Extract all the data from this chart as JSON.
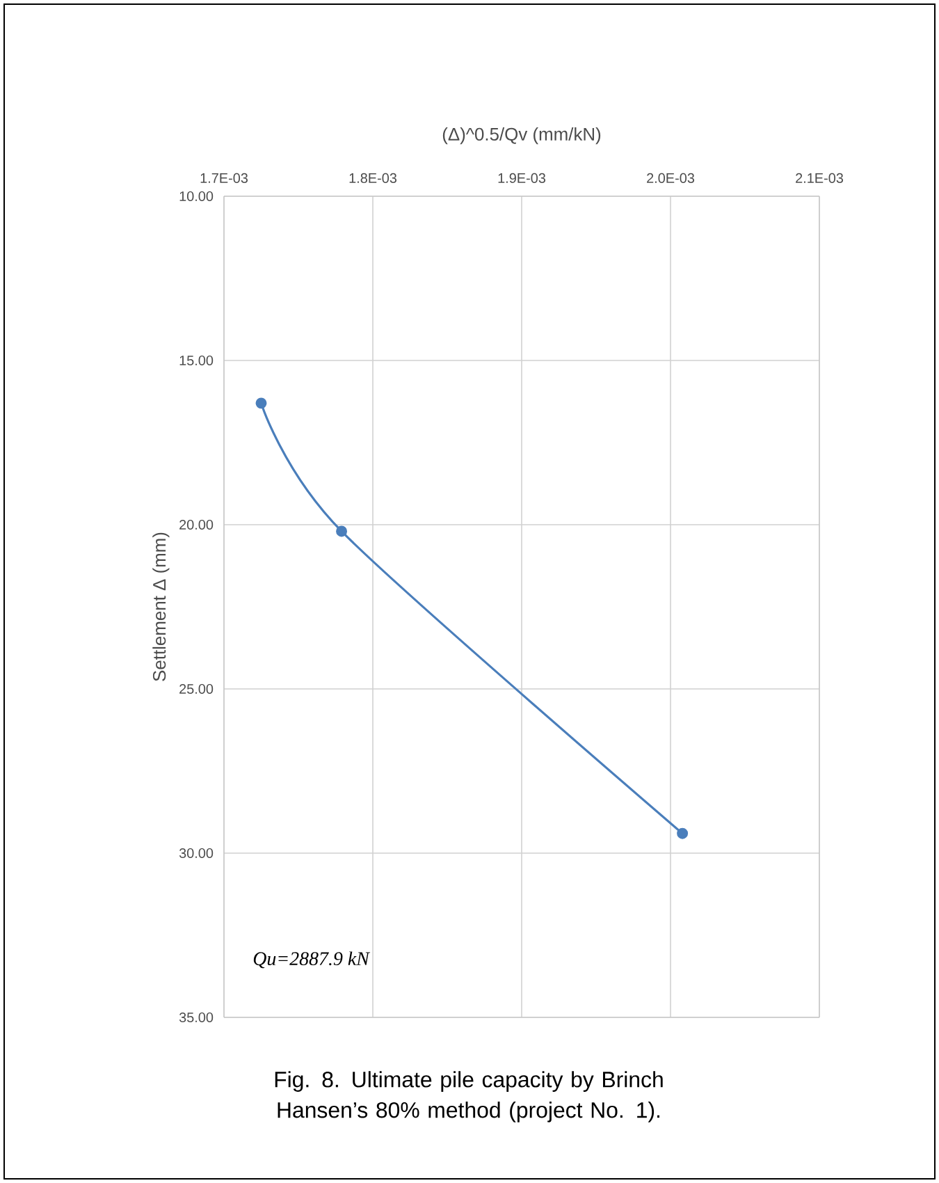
{
  "chart_data": {
    "type": "line",
    "xlabel": "(Δ)^0.5/Qv (mm/kN)",
    "ylabel": "Settlement Δ (mm)",
    "x": [
      0.001725,
      0.001779,
      0.002008
    ],
    "series": [
      {
        "color": "#4a7ebb",
        "values": [
          16.3,
          20.2,
          29.4
        ]
      }
    ],
    "xlim": [
      0.0017,
      0.0021
    ],
    "xticks": [
      {
        "value": 0.0017,
        "label": "1.7E-03"
      },
      {
        "value": 0.0018,
        "label": "1.8E-03"
      },
      {
        "value": 0.0019,
        "label": "1.9E-03"
      },
      {
        "value": 0.002,
        "label": "2.0E-03"
      },
      {
        "value": 0.0021,
        "label": "2.1E-03"
      }
    ],
    "ylim": [
      35,
      10
    ],
    "yticks": [
      {
        "value": 10,
        "label": "10.00"
      },
      {
        "value": 15,
        "label": "15.00"
      },
      {
        "value": 20,
        "label": "20.00"
      },
      {
        "value": 25,
        "label": "25.00"
      },
      {
        "value": 30,
        "label": "30.00"
      },
      {
        "value": 35,
        "label": "35.00"
      }
    ],
    "grid": true,
    "marker": "circle",
    "line_style": "solid",
    "annotations": [
      "Qu=2887.9 kN",
      "Fig. 8. Ultimate pile capacity by Brinch Hansen’s 80% method (project No. 1)."
    ]
  }
}
